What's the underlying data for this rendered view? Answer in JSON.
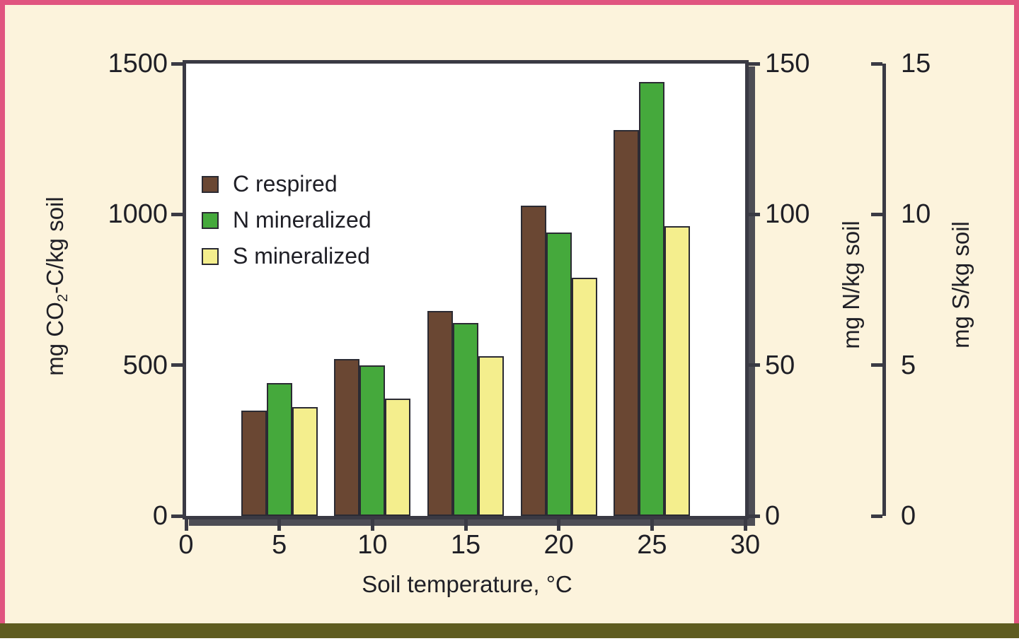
{
  "page": {
    "background": "#fcf3dc",
    "border_pink": "#e0547f",
    "bottom_band": "#5e5c20"
  },
  "style": {
    "axis_color": "#3a3a44",
    "text_color": "#1f1f26",
    "shadow_color": "#4d4d55",
    "bar_outline": "#2b2b33"
  },
  "chart_data": {
    "type": "bar",
    "title": "",
    "xlabel": "Soil temperature, °C",
    "x": [
      5,
      10,
      15,
      20,
      25
    ],
    "x_ticks": [
      0,
      5,
      10,
      15,
      20,
      25,
      30
    ],
    "x_range": [
      0,
      30
    ],
    "grid": false,
    "legend_position": "upper-left-inside",
    "axes": {
      "co2": {
        "label_pre": "mg CO",
        "label_sub": "2",
        "label_post": "-C/kg soil",
        "ticks": [
          0,
          500,
          1000,
          1500
        ],
        "max": 1500,
        "side": "left"
      },
      "n": {
        "label": "mg N/kg soil",
        "ticks": [
          0,
          50,
          100,
          150
        ],
        "max": 150,
        "side": "right"
      },
      "s": {
        "label": "mg S/kg soil",
        "ticks": [
          0,
          5,
          10,
          15
        ],
        "max": 15,
        "side": "far-right"
      }
    },
    "series": [
      {
        "name": "C respired",
        "axis": "co2",
        "color": "#6a4733",
        "values": [
          350,
          520,
          680,
          1030,
          1280
        ]
      },
      {
        "name": "N mineralized",
        "axis": "n",
        "color": "#45a93c",
        "values": [
          44,
          50,
          64,
          94,
          144
        ]
      },
      {
        "name": "S mineralized",
        "axis": "s",
        "color": "#f4ee8d",
        "values": [
          3.6,
          3.9,
          5.3,
          7.9,
          9.6
        ]
      }
    ]
  }
}
